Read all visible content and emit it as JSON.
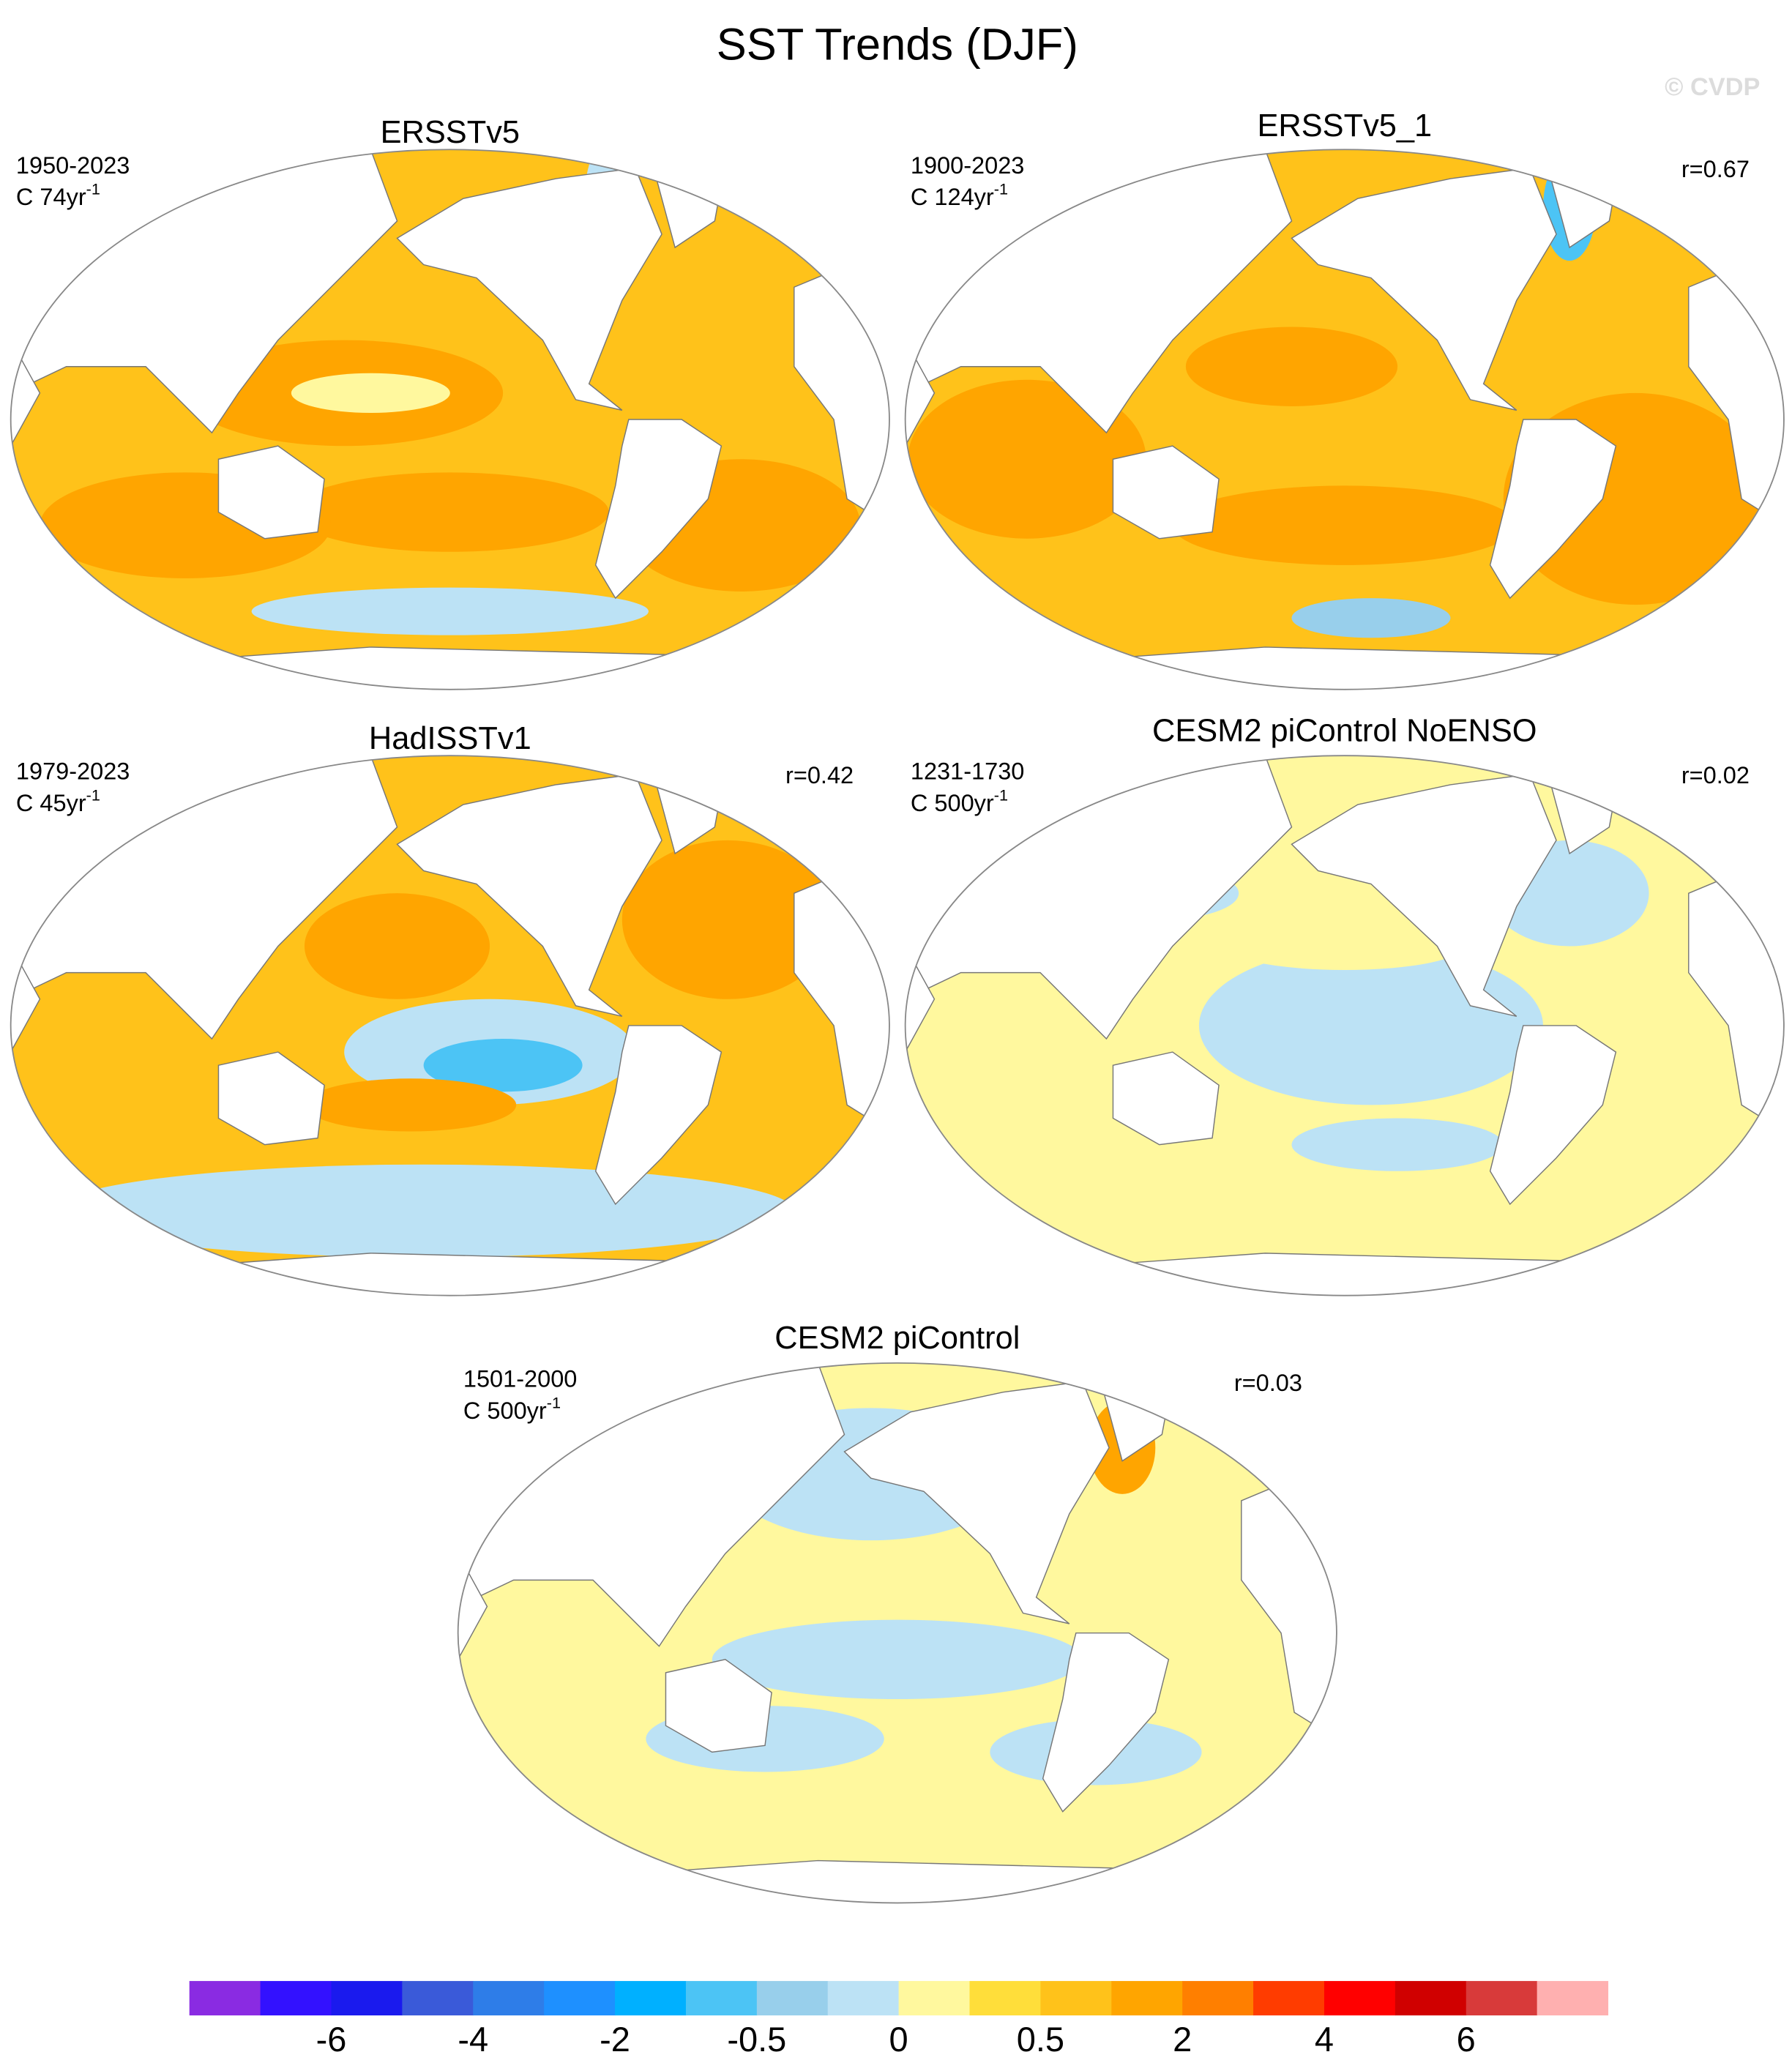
{
  "title": "SST Trends (DJF)",
  "watermark": "© CVDP",
  "panels": [
    {
      "title": "ERSSTv5",
      "period": "1950-2023",
      "scale": "C 74yr",
      "scale_exponent": "-1"
    },
    {
      "title": "ERSSTv5_1",
      "period": "1900-2023",
      "scale": "C 124yr",
      "scale_exponent": "-1",
      "r": "r=0.67"
    },
    {
      "title": "HadISSTv1",
      "period": "1979-2023",
      "scale": "C 45yr",
      "scale_exponent": "-1",
      "r": "r=0.42"
    },
    {
      "title": "CESM2 piControl NoENSO",
      "period": "1231-1730",
      "scale": "C 500yr",
      "scale_exponent": "-1",
      "r": "r=0.02"
    },
    {
      "title": "CESM2 piControl",
      "period": "1501-2000",
      "scale": "C 500yr",
      "scale_exponent": "-1",
      "r": "r=0.03"
    }
  ],
  "colorbar": {
    "colors": [
      "#8a2be2",
      "#3311ff",
      "#1a1aee",
      "#3a5ad9",
      "#2e7de8",
      "#1e90ff",
      "#00b0ff",
      "#4cc4f5",
      "#98cfeb",
      "#bce2f5",
      "#fff89e",
      "#ffde3a",
      "#ffc21a",
      "#ffa500",
      "#ff7f00",
      "#ff3c00",
      "#ff0000",
      "#d00000",
      "#d83a3a",
      "#ffb0b0"
    ],
    "labels": [
      -6,
      -4,
      -2,
      -0.5,
      0,
      0.5,
      2,
      4,
      6
    ]
  }
}
